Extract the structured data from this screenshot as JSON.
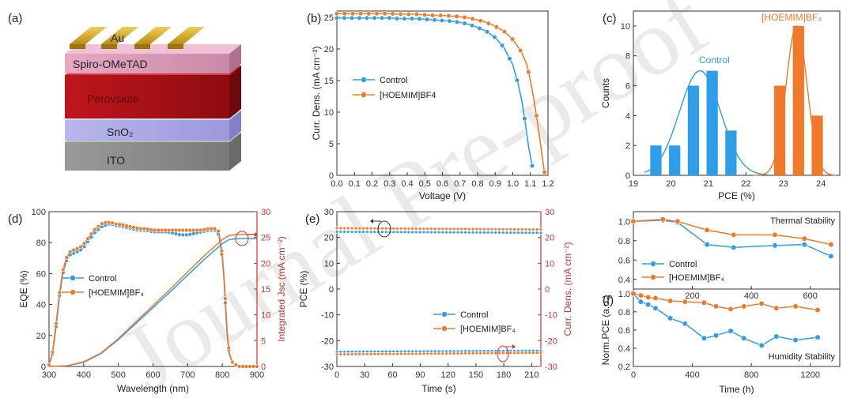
{
  "watermark": "Journal Pre-proof",
  "colors": {
    "control": "#2f9ee8",
    "hoemim": "#f07a2a",
    "red_axis": "#d03030"
  },
  "panel_a": {
    "label": "(a)",
    "layers": [
      "Au",
      "Spiro-OMeTAD",
      "Perovskite",
      "SnO₂",
      "ITO"
    ]
  },
  "chart_data": [
    {
      "panel": "(b)",
      "type": "line",
      "xlabel": "Voltage (V)",
      "ylabel": "Curr. Dens. (mA cm⁻²)",
      "xlim": [
        0,
        1.2
      ],
      "ylim": [
        0,
        26
      ],
      "xticks": [
        "0.0",
        "0.1",
        "0.2",
        "0.3",
        "0.4",
        "0.5",
        "0.6",
        "0.7",
        "0.8",
        "0.9",
        "1.0",
        "1.1",
        "1.2"
      ],
      "yticks": [
        "0",
        "5",
        "10",
        "15",
        "20",
        "25"
      ],
      "legend": "middle-left",
      "series": [
        {
          "name": "Control",
          "x": [
            0,
            0.05,
            0.1,
            0.15,
            0.2,
            0.25,
            0.3,
            0.35,
            0.4,
            0.45,
            0.5,
            0.55,
            0.6,
            0.65,
            0.7,
            0.75,
            0.8,
            0.85,
            0.9,
            0.95,
            1.0,
            1.03,
            1.05,
            1.07,
            1.09,
            1.11
          ],
          "y": [
            24.9,
            24.9,
            24.9,
            24.9,
            24.9,
            24.9,
            24.9,
            24.8,
            24.8,
            24.8,
            24.7,
            24.6,
            24.5,
            24.4,
            24.2,
            23.9,
            23.4,
            22.8,
            21.8,
            20.2,
            17.5,
            14.5,
            12,
            8.5,
            4.5,
            1.5
          ]
        },
        {
          "name": "[HOEMIM]BF4",
          "x": [
            0,
            0.05,
            0.1,
            0.15,
            0.2,
            0.25,
            0.3,
            0.35,
            0.4,
            0.45,
            0.5,
            0.55,
            0.6,
            0.65,
            0.7,
            0.75,
            0.8,
            0.85,
            0.9,
            0.95,
            1.0,
            1.05,
            1.08,
            1.1,
            1.12,
            1.14,
            1.16,
            1.18
          ],
          "y": [
            25.6,
            25.6,
            25.6,
            25.6,
            25.6,
            25.6,
            25.6,
            25.5,
            25.5,
            25.5,
            25.4,
            25.3,
            25.3,
            25.2,
            25.1,
            24.9,
            24.6,
            24.2,
            23.6,
            22.8,
            21.5,
            19.5,
            17.5,
            15,
            12,
            8.5,
            4.5,
            0.5
          ]
        }
      ]
    },
    {
      "panel": "(c)",
      "type": "bar",
      "xlabel": "PCE (%)",
      "ylabel": "Counts",
      "xlim": [
        19,
        24.5
      ],
      "ylim": [
        0,
        11
      ],
      "xticks": [
        "19",
        "20",
        "21",
        "22",
        "23",
        "24"
      ],
      "yticks": [
        "0",
        "2",
        "4",
        "6",
        "8",
        "10"
      ],
      "annotations": [
        "Control",
        "[HOEMIM]BF₄"
      ],
      "series": [
        {
          "name": "Control",
          "x": [
            19.6,
            20.1,
            20.6,
            21.1,
            21.6
          ],
          "y": [
            2,
            2,
            6,
            7,
            3
          ]
        },
        {
          "name": "[HOEMIM]BF₄",
          "x": [
            22.9,
            23.4,
            23.9
          ],
          "y": [
            6,
            10,
            4
          ]
        }
      ]
    },
    {
      "panel": "(d)",
      "type": "line",
      "xlabel": "Wavelength (nm)",
      "ylabel": "EQE (%)",
      "ylabel_right": "Integrated Jsc (mA cm⁻²)",
      "xlim": [
        300,
        900
      ],
      "ylim": [
        0,
        100
      ],
      "ylim_right": [
        0,
        30
      ],
      "xticks": [
        "300",
        "400",
        "500",
        "600",
        "700",
        "800",
        "900"
      ],
      "yticks": [
        "0",
        "20",
        "40",
        "60",
        "80",
        "100"
      ],
      "yticks_right": [
        "0",
        "5",
        "10",
        "15",
        "20",
        "25",
        "30"
      ],
      "legend": "middle-left",
      "series": [
        {
          "name": "Control",
          "x": [
            300,
            310,
            320,
            330,
            340,
            350,
            360,
            370,
            380,
            390,
            400,
            410,
            420,
            430,
            440,
            450,
            460,
            470,
            480,
            490,
            500,
            520,
            540,
            560,
            580,
            600,
            620,
            640,
            660,
            680,
            700,
            720,
            740,
            760,
            780,
            790,
            800,
            805,
            810,
            815,
            820,
            830,
            840,
            850,
            870,
            890,
            900
          ],
          "y": [
            1,
            8,
            25,
            45,
            60,
            68,
            72,
            73,
            74,
            75,
            77,
            80,
            83,
            86,
            88,
            90,
            91,
            92,
            92,
            91,
            91,
            90,
            89,
            88,
            88,
            87,
            87,
            87,
            86,
            85,
            85,
            86,
            87,
            88,
            88,
            85,
            70,
            55,
            35,
            18,
            8,
            2,
            1,
            0,
            0,
            0,
            0
          ]
        },
        {
          "name": "[HOEMIM]BF₄",
          "x": [
            300,
            310,
            320,
            330,
            340,
            350,
            360,
            370,
            380,
            390,
            400,
            410,
            420,
            430,
            440,
            450,
            460,
            470,
            480,
            490,
            500,
            520,
            540,
            560,
            580,
            600,
            620,
            640,
            660,
            680,
            700,
            720,
            740,
            760,
            780,
            790,
            800,
            805,
            810,
            815,
            820,
            830,
            840,
            850,
            870,
            890,
            900
          ],
          "y": [
            1,
            9,
            27,
            47,
            62,
            70,
            74,
            75,
            76,
            77,
            79,
            82,
            85,
            88,
            90,
            92,
            93,
            93,
            93,
            92,
            92,
            91,
            90,
            89,
            89,
            88,
            88,
            88,
            88,
            88,
            88,
            88,
            88,
            89,
            89,
            87,
            72,
            57,
            38,
            20,
            9,
            2,
            1,
            0,
            0,
            0,
            0
          ]
        },
        {
          "name": "Integrated Jsc Control",
          "x": [
            300,
            350,
            400,
            450,
            500,
            550,
            600,
            650,
            700,
            750,
            800,
            820,
            850,
            880,
            900
          ],
          "y": [
            0,
            0.1,
            0.8,
            2.5,
            5.2,
            8.3,
            11.4,
            14.5,
            17.7,
            20.9,
            23.8,
            24.6,
            24.8,
            24.8,
            24.8
          ]
        },
        {
          "name": "Integrated Jsc [HOEMIM]BF₄",
          "x": [
            300,
            350,
            400,
            450,
            500,
            550,
            600,
            650,
            700,
            750,
            800,
            820,
            850,
            880,
            900
          ],
          "y": [
            0,
            0.1,
            0.9,
            2.6,
            5.4,
            8.6,
            11.8,
            15,
            18.3,
            21.6,
            24.6,
            25.4,
            25.6,
            25.6,
            25.6
          ]
        }
      ]
    },
    {
      "panel": "(e)",
      "type": "line",
      "xlabel": "Time (s)",
      "ylabel": "PCE (%)",
      "ylabel_right": "Curr. Dens. (mA cm⁻²)",
      "xlim": [
        0,
        220
      ],
      "ylim": [
        -30,
        30
      ],
      "ylim_right": [
        -30,
        30
      ],
      "xticks": [
        "0",
        "30",
        "60",
        "90",
        "120",
        "150",
        "180",
        "210"
      ],
      "yticks": [
        "-30",
        "-20",
        "-10",
        "0",
        "10",
        "20",
        "30"
      ],
      "yticks_right": [
        "-30",
        "-20",
        "-10",
        "0",
        "10",
        "20",
        "30"
      ],
      "legend": "lower-right",
      "series": [
        {
          "name": "Control",
          "x": [
            0,
            220
          ],
          "y": [
            22.2,
            21.8
          ]
        },
        {
          "name": "[HOEMIM]BF₄",
          "x": [
            0,
            220
          ],
          "y": [
            23.6,
            23.1
          ]
        },
        {
          "name": "Curr. Dens. Control",
          "x": [
            0,
            220
          ],
          "y": [
            -24.3,
            -23.9
          ]
        },
        {
          "name": "Curr. Dens. [HOEMIM]BF₄",
          "x": [
            0,
            220
          ],
          "y": [
            -25.3,
            -24.7
          ]
        }
      ]
    },
    {
      "panel": "(f)",
      "type": "line",
      "xlabel": "Time (h)",
      "ylabel": "Norm.PCE (a.u.)",
      "subplots": [
        {
          "annotation": "Thermal Stability",
          "xlim": [
            0,
            700
          ],
          "ylim": [
            0.3,
            1.1
          ],
          "xticks": [
            "200",
            "400",
            "600"
          ],
          "yticks": [
            "0.4",
            "0.6",
            "0.8",
            "1.0"
          ],
          "legend": "lower-left",
          "series": [
            {
              "name": "Control",
              "x": [
                0,
                100,
                150,
                250,
                340,
                480,
                580,
                670
              ],
              "y": [
                1.0,
                1.01,
                0.99,
                0.76,
                0.73,
                0.75,
                0.76,
                0.64
              ]
            },
            {
              "name": "[HOEMIM]BF₄",
              "x": [
                0,
                100,
                150,
                250,
                340,
                480,
                580,
                670
              ],
              "y": [
                1.0,
                1.02,
                1.0,
                0.91,
                0.86,
                0.86,
                0.82,
                0.76
              ]
            }
          ]
        },
        {
          "annotation": "Humidity Stability",
          "xlim": [
            0,
            1400
          ],
          "ylim": [
            0.2,
            1.05
          ],
          "xticks": [
            "0",
            "400",
            "800",
            "1200"
          ],
          "yticks": [
            "0.2",
            "0.4",
            "0.6",
            "0.8",
            "1.0"
          ],
          "series": [
            {
              "name": "Control",
              "x": [
                0,
                50,
                100,
                150,
                250,
                350,
                480,
                560,
                660,
                750,
                870,
                970,
                1100,
                1250
              ],
              "y": [
                1.0,
                0.91,
                0.88,
                0.84,
                0.73,
                0.67,
                0.51,
                0.54,
                0.59,
                0.51,
                0.43,
                0.53,
                0.49,
                0.52
              ]
            },
            {
              "name": "[HOEMIM]BF₄",
              "x": [
                0,
                50,
                100,
                150,
                250,
                350,
                480,
                560,
                660,
                750,
                870,
                970,
                1100,
                1250
              ],
              "y": [
                1.0,
                0.98,
                0.96,
                0.95,
                0.92,
                0.91,
                0.9,
                0.86,
                0.83,
                0.86,
                0.89,
                0.84,
                0.86,
                0.82
              ]
            }
          ]
        }
      ]
    }
  ]
}
